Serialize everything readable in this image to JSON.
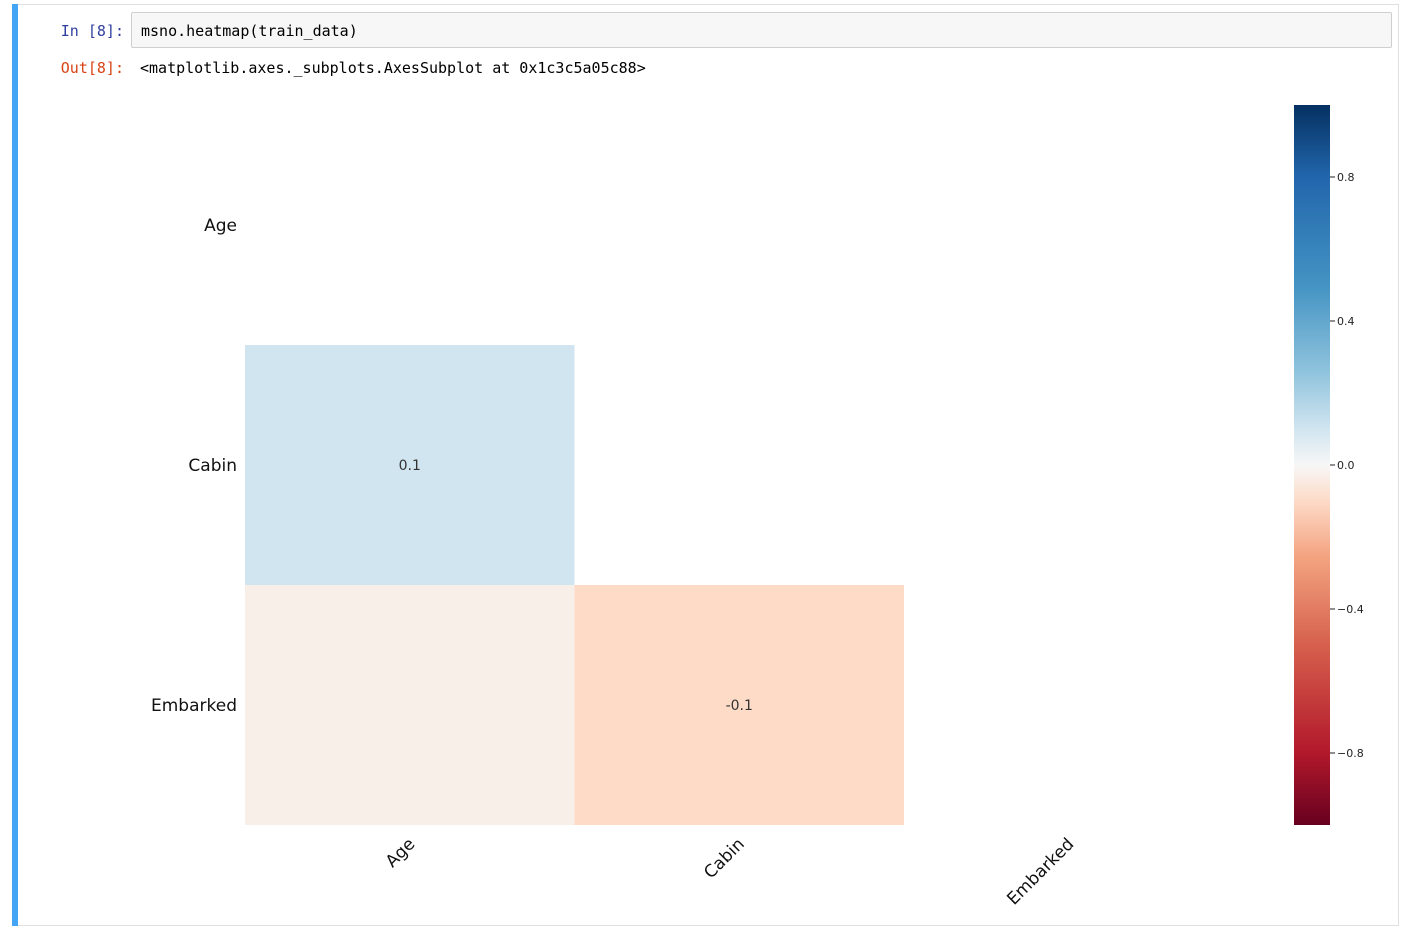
{
  "notebook": {
    "in_prompt": "In  [8]:",
    "code": "msno.heatmap(train_data)",
    "out_prompt": "Out[8]:",
    "output_text": "<matplotlib.axes._subplots.AxesSubplot at 0x1c3c5a05c88>",
    "accent_color": "#42a5f5"
  },
  "chart_data": {
    "type": "heatmap",
    "title": "",
    "xlabel": "",
    "ylabel": "",
    "rows": [
      "Age",
      "Cabin",
      "Embarked"
    ],
    "columns": [
      "Age",
      "Cabin",
      "Embarked"
    ],
    "cells": [
      {
        "row": "Cabin",
        "col": "Age",
        "value": 0.1,
        "label": "0.1"
      },
      {
        "row": "Embarked",
        "col": "Age",
        "value": -0.03,
        "label": ""
      },
      {
        "row": "Embarked",
        "col": "Cabin",
        "value": -0.1,
        "label": "-0.1"
      }
    ],
    "colormap": "RdBu",
    "vmin": -1,
    "vmax": 1,
    "colorbar_ticks": [
      {
        "value": 0.8,
        "label": "0.8"
      },
      {
        "value": 0.4,
        "label": "0.4"
      },
      {
        "value": 0.0,
        "label": "0.0"
      },
      {
        "value": -0.4,
        "label": "−0.4"
      },
      {
        "value": -0.8,
        "label": "−0.8"
      }
    ],
    "grid": false
  }
}
